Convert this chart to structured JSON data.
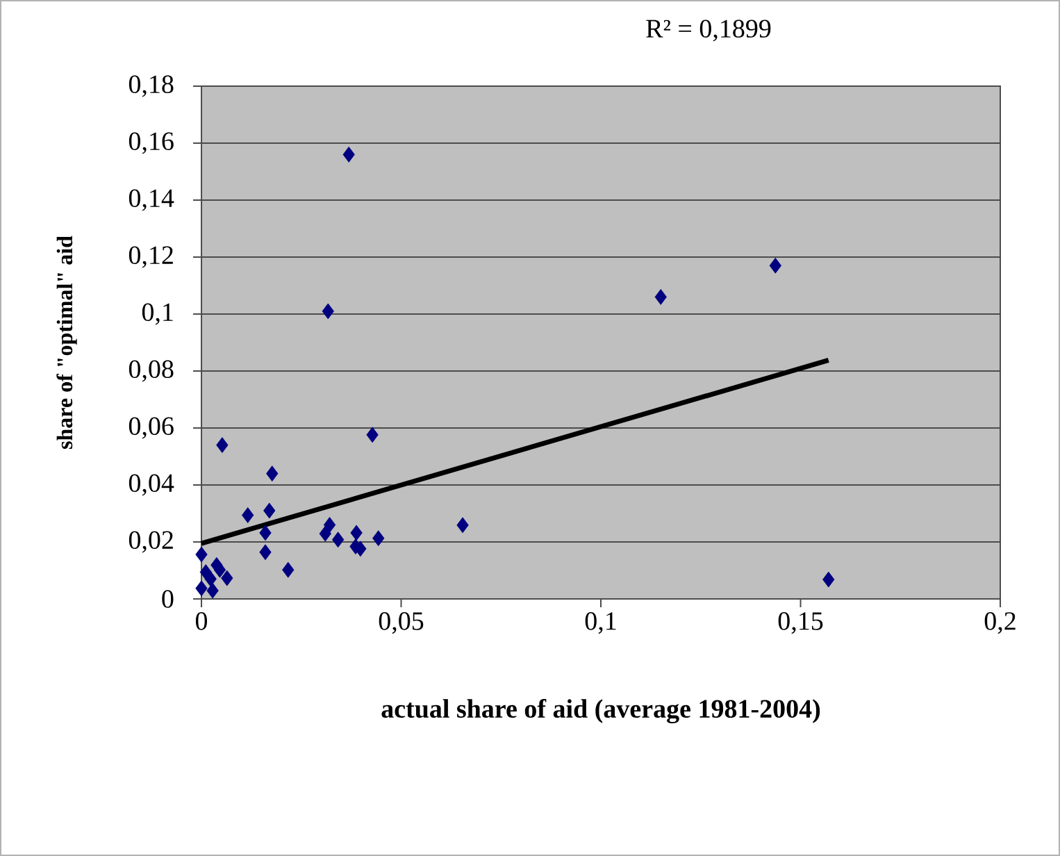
{
  "chart_data": {
    "type": "scatter",
    "xlabel": "actual share of aid (average 1981-2004)",
    "ylabel": "share of \"optimal\" aid",
    "annotations": [
      "R² = 0,1899"
    ],
    "xlim": [
      0,
      0.2
    ],
    "ylim": [
      0,
      0.18
    ],
    "xticks": [
      {
        "value": 0,
        "label": "0"
      },
      {
        "value": 0.05,
        "label": "0,05"
      },
      {
        "value": 0.1,
        "label": "0,1"
      },
      {
        "value": 0.15,
        "label": "0,15"
      },
      {
        "value": 0.2,
        "label": "0,2"
      }
    ],
    "yticks": [
      {
        "value": 0,
        "label": "0"
      },
      {
        "value": 0.02,
        "label": "0,02"
      },
      {
        "value": 0.04,
        "label": "0,04"
      },
      {
        "value": 0.06,
        "label": "0,06"
      },
      {
        "value": 0.08,
        "label": "0,08"
      },
      {
        "value": 0.1,
        "label": "0,1"
      },
      {
        "value": 0.12,
        "label": "0,12"
      },
      {
        "value": 0.14,
        "label": "0,14"
      },
      {
        "value": 0.16,
        "label": "0,16"
      },
      {
        "value": 0.18,
        "label": "0,18"
      }
    ],
    "grid": "y",
    "legend": false,
    "series": [
      {
        "color": "#000080",
        "marker": "diamond",
        "x": [
          0.0369,
          0.0317,
          0.115,
          0.1437,
          0.157,
          0.0052,
          0.0177,
          0.0428,
          0.0654,
          0.0116,
          0.017,
          0.016,
          0.016,
          0.0217,
          0.0321,
          0.031,
          0.0342,
          0.0388,
          0.0398,
          0.0386,
          0.0443,
          0,
          0,
          0.0028,
          0.0038,
          0.0052,
          0.0064,
          0.0023,
          0.0046,
          0.0011
        ],
        "values": [
          0.156,
          0.101,
          0.106,
          0.117,
          0.0068,
          0.054,
          0.044,
          0.0576,
          0.0259,
          0.0294,
          0.031,
          0.0232,
          0.0164,
          0.0102,
          0.026,
          0.0229,
          0.0208,
          0.0232,
          0.0176,
          0.0184,
          0.0213,
          0.0156,
          0.0037,
          0.0029,
          0.0119,
          null,
          0.0073,
          0.007,
          0.0102,
          0.0094
        ]
      },
      {
        "type": "line",
        "color": "#000000",
        "marker": "none",
        "line_style": "solid",
        "x": [
          0,
          0.157
        ],
        "values": [
          0.0195,
          0.0838
        ]
      }
    ]
  }
}
